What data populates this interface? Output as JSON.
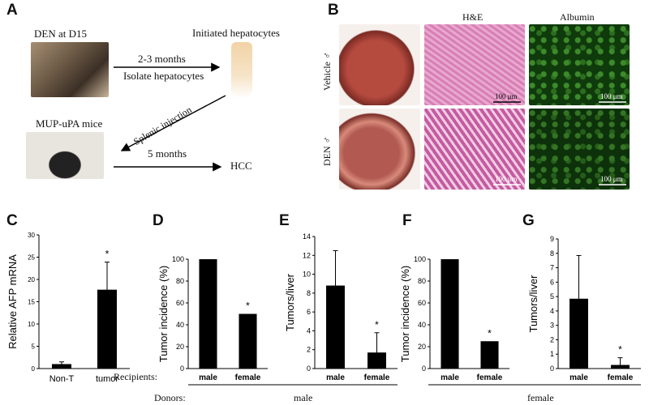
{
  "panels": {
    "A": {
      "label": "A",
      "den_title": "DEN at D15",
      "initiated_title": "Initiated hepatocytes",
      "arrow1_top": "2-3 months",
      "arrow1_bottom": "Isolate hepatocytes",
      "splenic": "Splenic injection",
      "mup_title": "MUP-uPA mice",
      "arrow2_top": "5 months",
      "hcc": "HCC"
    },
    "B": {
      "label": "B",
      "col_he": "H&E",
      "col_albumin": "Albumin",
      "row_vehicle": "Vehicle ♂",
      "row_den": "DEN ♂",
      "scale": "100 μm"
    },
    "C": {
      "label": "C"
    },
    "D": {
      "label": "D"
    },
    "E": {
      "label": "E"
    },
    "F": {
      "label": "F"
    },
    "G": {
      "label": "G"
    },
    "footer": {
      "recipients": "Recipients:",
      "donors": "Donors:",
      "donor_male": "male",
      "donor_female": "female"
    }
  },
  "chart_data": [
    {
      "id": "C",
      "type": "bar",
      "categories": [
        "Non-T",
        "tumor"
      ],
      "values": [
        1.0,
        17.7
      ],
      "errors": [
        0.5,
        6.2
      ],
      "significance": [
        "",
        "*"
      ],
      "ylabel": "Relative AFP mRNA",
      "ylim": [
        0,
        30
      ],
      "yticks": [
        0,
        5,
        10,
        15,
        20,
        25,
        30
      ]
    },
    {
      "id": "D",
      "type": "bar",
      "categories": [
        "male",
        "female"
      ],
      "values": [
        100,
        50
      ],
      "errors": [
        0,
        0
      ],
      "significance": [
        "",
        "*"
      ],
      "ylabel": "Tumor incidence (%)",
      "ylim": [
        0,
        100
      ],
      "yticks": [
        0,
        20,
        40,
        60,
        80,
        100
      ]
    },
    {
      "id": "E",
      "type": "bar",
      "categories": [
        "male",
        "female"
      ],
      "values": [
        8.8,
        1.7
      ],
      "errors": [
        3.7,
        2.1
      ],
      "significance": [
        "",
        "*"
      ],
      "ylabel": "Tumors/liver",
      "ylim": [
        0,
        14
      ],
      "yticks": [
        0,
        2,
        4,
        6,
        8,
        10,
        12,
        14
      ]
    },
    {
      "id": "F",
      "type": "bar",
      "categories": [
        "male",
        "female"
      ],
      "values": [
        100,
        25
      ],
      "errors": [
        0,
        0
      ],
      "significance": [
        "",
        "*"
      ],
      "ylabel": "Tumor incidence (%)",
      "ylim": [
        0,
        100
      ],
      "yticks": [
        0,
        20,
        40,
        60,
        80,
        100
      ]
    },
    {
      "id": "G",
      "type": "bar",
      "categories": [
        "male",
        "female"
      ],
      "values": [
        4.85,
        0.25
      ],
      "errors": [
        3.0,
        0.5
      ],
      "significance": [
        "",
        "*"
      ],
      "ylabel": "Tumors/liver",
      "ylim": [
        0,
        9
      ],
      "yticks": [
        0,
        1,
        2,
        3,
        4,
        5,
        6,
        7,
        8,
        9
      ]
    }
  ]
}
